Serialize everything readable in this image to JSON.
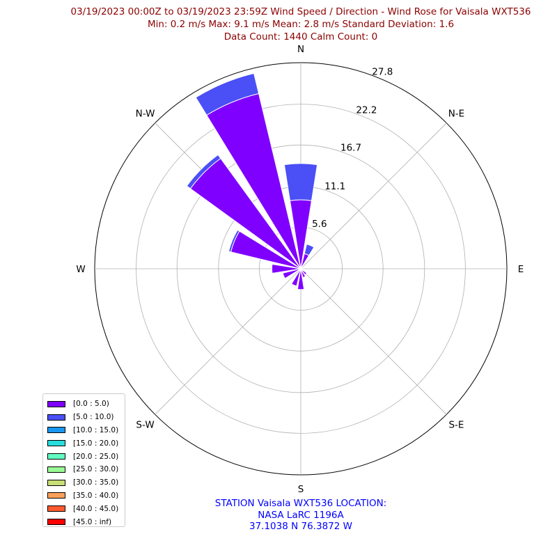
{
  "header": {
    "line1": "03/19/2023 00:00Z to 03/19/2023 23:59Z Wind Speed / Direction - Wind Rose for Vaisala WXT536",
    "line2": "Min: 0.2 m/s   Max: 9.1 m/s   Mean: 2.8 m/s  Standard Deviation: 1.6",
    "line3": "Data Count: 1440  Calm Count:  0"
  },
  "footer": {
    "line1": "STATION Vaisala WXT536 LOCATION:",
    "line2": "NASA LaRC 1196A",
    "line3": "37.1038 N 76.3872 W"
  },
  "chart_data": {
    "type": "wind-rose",
    "directions": [
      "N",
      "NNE",
      "NE",
      "ENE",
      "E",
      "ESE",
      "SE",
      "SSE",
      "S",
      "SSW",
      "SW",
      "WSW",
      "W",
      "WNW",
      "NW",
      "NNW"
    ],
    "direction_labels": [
      "N",
      "N-E",
      "E",
      "S-E",
      "S",
      "S-W",
      "W",
      "N-W"
    ],
    "radial_ticks": [
      "5.6",
      "11.1",
      "16.7",
      "22.2",
      "27.8"
    ],
    "rmax": 27.8,
    "grid": true,
    "series": [
      {
        "name": "[0.0 : 5.0)",
        "color": "#7f00ff",
        "values": [
          9.3,
          2.1,
          0.5,
          0.3,
          0.2,
          0.4,
          1.0,
          1.2,
          2.8,
          2.4,
          0.5,
          2.5,
          3.9,
          9.7,
          18.4,
          24.3
        ]
      },
      {
        "name": "[5.0 : 10.0)",
        "color": "#4a4ff6",
        "values": [
          4.9,
          1.3,
          0,
          0,
          0,
          0,
          0,
          0,
          0,
          0,
          0,
          0,
          0,
          0.3,
          0.6,
          2.8
        ]
      },
      {
        "name": "[10.0 : 15.0)",
        "color": "#1996f0",
        "values": []
      },
      {
        "name": "[15.0 : 20.0)",
        "color": "#2adddd",
        "values": []
      },
      {
        "name": "[20.0 : 25.0)",
        "color": "#62fbc4",
        "values": []
      },
      {
        "name": "[25.0 : 30.0)",
        "color": "#98fa96",
        "values": []
      },
      {
        "name": "[30.0 : 35.0)",
        "color": "#c8de78",
        "values": []
      },
      {
        "name": "[35.0 : 40.0)",
        "color": "#fea05a",
        "values": []
      },
      {
        "name": "[40.0 : 45.0)",
        "color": "#ff5a2f",
        "values": []
      },
      {
        "name": "[45.0 : inf)",
        "color": "#ff0000",
        "values": []
      }
    ],
    "legend_position": "lower-left"
  }
}
